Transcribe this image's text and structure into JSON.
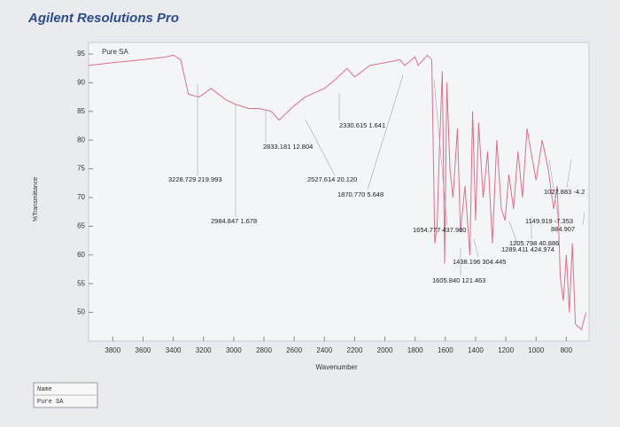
{
  "app_title": "Agilent Resolutions Pro",
  "chart_data": {
    "type": "line",
    "y_label": "%Transmittance",
    "x_label": "Wavenumber",
    "legend_corner": "top-left",
    "xlim": [
      3960,
      650
    ],
    "ylim": [
      45,
      97
    ],
    "xticks": [
      3800,
      3600,
      3400,
      3200,
      3000,
      2800,
      2600,
      2400,
      2200,
      2000,
      1800,
      1600,
      1400,
      1200,
      1000,
      800
    ],
    "yticks": [
      50,
      55,
      60,
      65,
      70,
      75,
      80,
      85,
      90,
      95
    ],
    "x": [
      3960,
      3800,
      3600,
      3450,
      3400,
      3350,
      3300,
      3228,
      3150,
      3050,
      2985,
      2900,
      2833,
      2750,
      2700,
      2600,
      2527,
      2400,
      2330,
      2250,
      2200,
      2100,
      2000,
      1900,
      1870,
      1800,
      1780,
      1720,
      1690,
      1670,
      1655,
      1640,
      1620,
      1605,
      1590,
      1570,
      1550,
      1520,
      1500,
      1470,
      1438,
      1420,
      1400,
      1380,
      1350,
      1320,
      1289,
      1260,
      1230,
      1205,
      1180,
      1149,
      1120,
      1090,
      1060,
      1027,
      1000,
      960,
      920,
      884,
      860,
      840,
      820,
      800,
      780,
      760,
      740,
      700,
      670
    ],
    "series": [
      {
        "name": "Pure SA",
        "color": "#d9708f",
        "values": [
          93,
          93.5,
          94,
          94.5,
          94.8,
          94,
          88,
          87.5,
          89,
          87,
          86.2,
          85.5,
          85.5,
          85,
          83.5,
          86,
          87.5,
          89,
          90.5,
          92.5,
          91,
          93,
          93.5,
          94,
          93,
          94.5,
          93,
          94.8,
          94,
          62,
          65,
          78,
          92,
          58.5,
          90,
          75,
          70,
          82,
          64,
          72,
          60,
          85,
          66,
          83,
          70,
          78,
          62,
          80,
          68,
          66,
          74,
          68,
          78,
          70,
          82,
          77,
          73,
          80,
          75,
          68,
          72,
          56,
          52,
          60,
          50,
          62,
          48,
          47,
          50
        ]
      }
    ],
    "annotations": [
      "3228.729 219.993",
      "2984.847 1.678",
      "2833.181 12.804",
      "2527.614 20.120",
      "2330.615 1.641",
      "1870.770 5.648",
      "1654.777 437.980",
      "1605.840 121.463",
      "1438.196 304.445",
      "1289.411 424.974",
      "1205.798 40.886",
      "1149.919 -7.353",
      "1027.883 -4.2",
      "884.907"
    ]
  },
  "name_table": {
    "header": "Name",
    "rows": [
      "Pure SA"
    ]
  }
}
